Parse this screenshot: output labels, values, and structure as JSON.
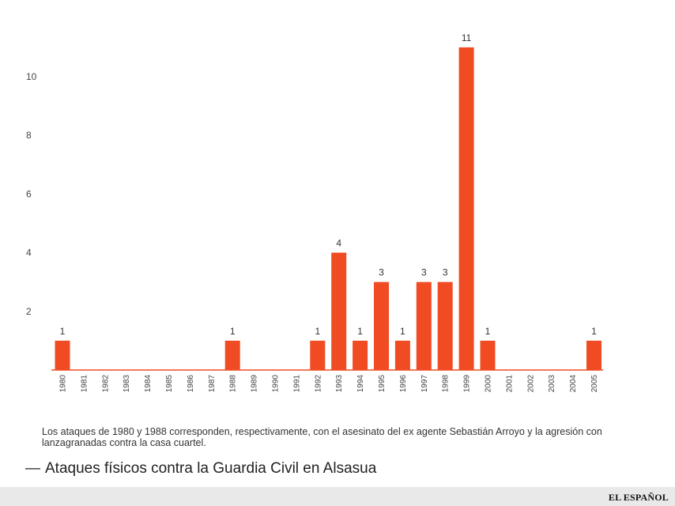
{
  "colors": {
    "bar": "#f04b23",
    "baseline": "#f04b23"
  },
  "chart_data": {
    "type": "bar",
    "title": "",
    "xlabel": "",
    "ylabel": "",
    "ylim": [
      0,
      11
    ],
    "yticks": [
      2,
      4,
      6,
      8,
      10
    ],
    "grid": false,
    "categories": [
      "1980",
      "1981",
      "1982",
      "1983",
      "1984",
      "1985",
      "1986",
      "1987",
      "1988",
      "1989",
      "1990",
      "1991",
      "1992",
      "1993",
      "1994",
      "1995",
      "1996",
      "1997",
      "1998",
      "1999",
      "2000",
      "2001",
      "2002",
      "2003",
      "2004",
      "2005"
    ],
    "values": [
      1,
      0,
      0,
      0,
      0,
      0,
      0,
      0,
      1,
      0,
      0,
      0,
      1,
      4,
      1,
      3,
      1,
      3,
      3,
      11,
      1,
      0,
      0,
      0,
      0,
      1
    ]
  },
  "note": "Los ataques de 1980 y 1988 corresponden, respectivamente, con el asesinato del ex agente Sebastián Arroyo y la agresión con lanzagranadas contra la casa cuartel.",
  "caption": {
    "dash": "—",
    "text": "Ataques físicos contra la Guardia Civil en Alsasua"
  },
  "footer": {
    "brand": "EL ESPAÑOL"
  }
}
